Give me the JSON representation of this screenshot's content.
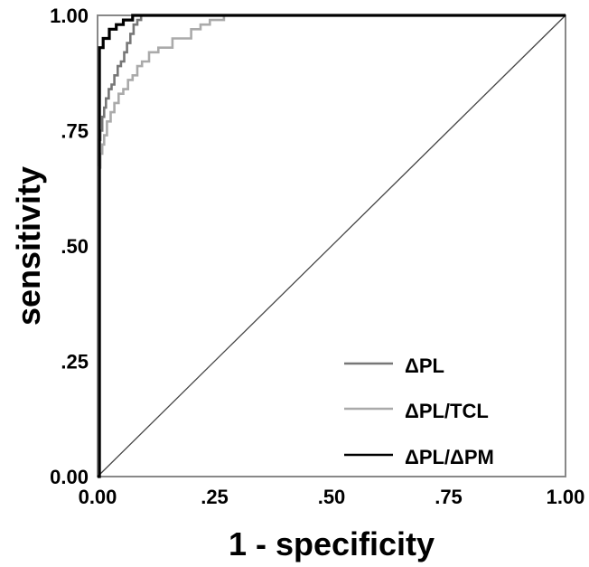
{
  "chart_data": {
    "type": "line",
    "xlabel": "1 - specificity",
    "ylabel": "sensitivity",
    "xlim": [
      0,
      1
    ],
    "ylim": [
      0,
      1
    ],
    "x_ticks": [
      {
        "value": 0,
        "label": "0.00"
      },
      {
        "value": 0.25,
        "label": ".25"
      },
      {
        "value": 0.5,
        "label": ".50"
      },
      {
        "value": 0.75,
        "label": ".75"
      },
      {
        "value": 1,
        "label": "1.00"
      }
    ],
    "y_ticks": [
      {
        "value": 0,
        "label": "0.00"
      },
      {
        "value": 0.25,
        "label": ".25"
      },
      {
        "value": 0.5,
        "label": ".50"
      },
      {
        "value": 0.75,
        "label": ".75"
      },
      {
        "value": 1,
        "label": "1.00"
      }
    ],
    "grid": false,
    "legend_position": "bottom-right",
    "reference_line": {
      "x": [
        0,
        1
      ],
      "y": [
        0,
        1
      ],
      "color": "#444444"
    },
    "series": [
      {
        "name": "ΔPL",
        "color": "#777777",
        "x": [
          0,
          0.003,
          0.003,
          0.006,
          0.006,
          0.01,
          0.01,
          0.014,
          0.014,
          0.018,
          0.018,
          0.024,
          0.024,
          0.03,
          0.03,
          0.036,
          0.036,
          0.043,
          0.043,
          0.05,
          0.05,
          0.057,
          0.057,
          0.063,
          0.063,
          0.07,
          0.07,
          0.077,
          0.077,
          0.085,
          0.085,
          0.093,
          0.093,
          1
        ],
        "y": [
          0,
          0,
          0.73,
          0.73,
          0.75,
          0.75,
          0.78,
          0.78,
          0.8,
          0.8,
          0.82,
          0.82,
          0.84,
          0.84,
          0.85,
          0.85,
          0.87,
          0.87,
          0.89,
          0.89,
          0.9,
          0.9,
          0.92,
          0.92,
          0.94,
          0.94,
          0.96,
          0.96,
          0.98,
          0.98,
          0.99,
          0.99,
          1,
          1
        ]
      },
      {
        "name": "ΔPL/TCL",
        "color": "#aaaaaa",
        "x": [
          0,
          0.003,
          0.003,
          0.006,
          0.006,
          0.01,
          0.01,
          0.014,
          0.014,
          0.02,
          0.02,
          0.028,
          0.028,
          0.036,
          0.036,
          0.045,
          0.045,
          0.055,
          0.055,
          0.065,
          0.065,
          0.075,
          0.075,
          0.085,
          0.085,
          0.095,
          0.095,
          0.11,
          0.11,
          0.13,
          0.13,
          0.16,
          0.16,
          0.2,
          0.2,
          0.22,
          0.22,
          0.24,
          0.24,
          0.27,
          0.27,
          1
        ],
        "y": [
          0,
          0,
          0.67,
          0.67,
          0.7,
          0.7,
          0.72,
          0.72,
          0.74,
          0.74,
          0.77,
          0.77,
          0.79,
          0.79,
          0.81,
          0.81,
          0.83,
          0.83,
          0.84,
          0.84,
          0.86,
          0.86,
          0.87,
          0.87,
          0.89,
          0.89,
          0.9,
          0.9,
          0.92,
          0.92,
          0.93,
          0.93,
          0.95,
          0.95,
          0.97,
          0.97,
          0.98,
          0.98,
          0.99,
          0.99,
          1,
          1
        ]
      },
      {
        "name": "ΔPL/ΔPM",
        "color": "#000000",
        "x": [
          0,
          0.004,
          0.004,
          0.012,
          0.012,
          0.025,
          0.025,
          0.04,
          0.04,
          0.055,
          0.055,
          0.075,
          0.075,
          1
        ],
        "y": [
          0,
          0,
          0.93,
          0.93,
          0.95,
          0.95,
          0.97,
          0.97,
          0.98,
          0.98,
          0.99,
          0.99,
          1,
          1
        ]
      }
    ]
  }
}
